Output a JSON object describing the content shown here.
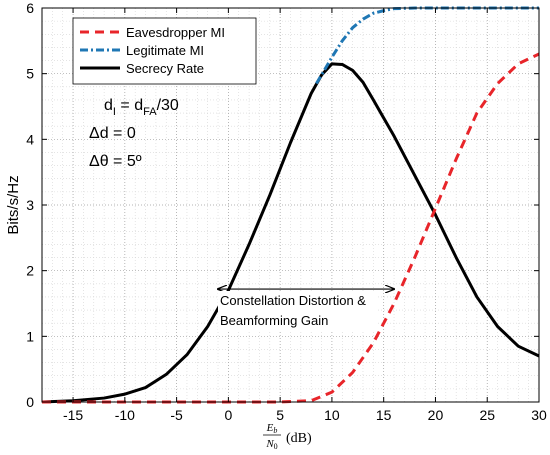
{
  "chart_data": {
    "type": "line",
    "ylabel": "Bits/s/Hz",
    "xlabel_fraction": {
      "numerator": "E_b",
      "denominator": "N_0",
      "unit": "(dB)"
    },
    "xlim": [
      -18,
      30
    ],
    "ylim": [
      0,
      6
    ],
    "xticks": [
      -15,
      -10,
      -5,
      0,
      5,
      10,
      15,
      20,
      25,
      30
    ],
    "xtick_labels": [
      "-15",
      "-10",
      "-5",
      "0",
      "5",
      "10",
      "15",
      "20",
      "25",
      "30"
    ],
    "yticks": [
      0,
      1,
      2,
      3,
      4,
      5,
      6
    ],
    "ytick_labels": [
      "0",
      "1",
      "2",
      "3",
      "4",
      "5",
      "6"
    ],
    "grid": "major and minor, dotted",
    "legend_position": "top-left",
    "series": [
      {
        "name": "Eavesdropper MI",
        "color": "#e8252a",
        "style": "dashed",
        "x": [
          -18,
          -15,
          -10,
          -5,
          0,
          5,
          8,
          10,
          12,
          14,
          16,
          18,
          20,
          22,
          24,
          26,
          28,
          30
        ],
        "y": [
          0,
          0,
          0,
          0,
          0,
          0,
          0.02,
          0.15,
          0.45,
          0.9,
          1.5,
          2.2,
          2.95,
          3.7,
          4.4,
          4.85,
          5.15,
          5.3
        ]
      },
      {
        "name": "Legitimate MI",
        "color": "#1f77b4",
        "style": "dash-dot",
        "x": [
          8.5,
          9,
          10,
          11,
          12,
          13,
          14,
          15,
          16,
          18,
          20,
          25,
          30
        ],
        "y": [
          4.85,
          4.98,
          5.25,
          5.5,
          5.7,
          5.83,
          5.92,
          5.96,
          5.99,
          6,
          6,
          6,
          6
        ]
      },
      {
        "name": "Secrecy Rate",
        "color": "#000000",
        "style": "solid",
        "x": [
          -18,
          -15,
          -12,
          -10,
          -8,
          -6,
          -4,
          -2,
          0,
          2,
          4,
          6,
          8,
          9,
          10,
          11,
          12,
          13,
          14,
          16,
          18,
          20,
          22,
          24,
          26,
          28,
          30
        ],
        "y": [
          0,
          0.02,
          0.06,
          0.12,
          0.22,
          0.42,
          0.72,
          1.15,
          1.7,
          2.4,
          3.15,
          3.95,
          4.7,
          4.98,
          5.15,
          5.14,
          5.05,
          4.87,
          4.6,
          4.05,
          3.45,
          2.85,
          2.2,
          1.6,
          1.15,
          0.85,
          0.7
        ]
      }
    ],
    "annotations": {
      "params": [
        {
          "lead": "d",
          "lead_sub": "I",
          "mid": " = d",
          "mid_sub": "FA",
          "tail": "/30"
        },
        {
          "text": "Δd = 0"
        },
        {
          "text": "Δθ = 5º"
        }
      ],
      "arrow": {
        "x_from": -1,
        "x_to": 16,
        "y": 1.72
      },
      "arrow_label_lines": [
        "Constellation Distortion &",
        "Beamforming Gain"
      ]
    }
  }
}
